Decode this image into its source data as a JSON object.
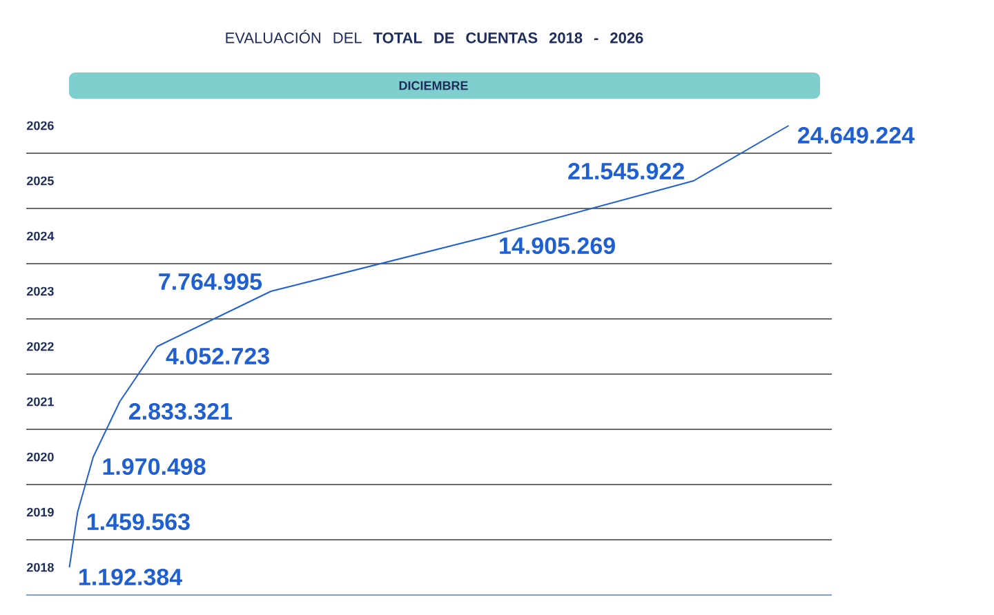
{
  "chart_data": {
    "type": "line",
    "title": "EVALUACIÓN DEL **TOTAL DE CUENTAS 2018 - 2026**",
    "subtitle": "DICIEMBRE",
    "orientation": "horizontal",
    "categories": [
      "2026",
      "2025",
      "2024",
      "2023",
      "2022",
      "2021",
      "2020",
      "2019",
      "2018"
    ],
    "values": [
      24649224,
      21545922,
      14905269,
      7764995,
      4052723,
      2833321,
      1970498,
      1459563,
      1192384
    ],
    "value_labels": [
      "24.649.224",
      "21.545.922",
      "14.905.269",
      "7.764.995",
      "4.052.723",
      "2.833.321",
      "1.970.498",
      "1.459.563",
      "1.192.384"
    ],
    "color": "#1f5fcf",
    "grid": "y"
  }
}
